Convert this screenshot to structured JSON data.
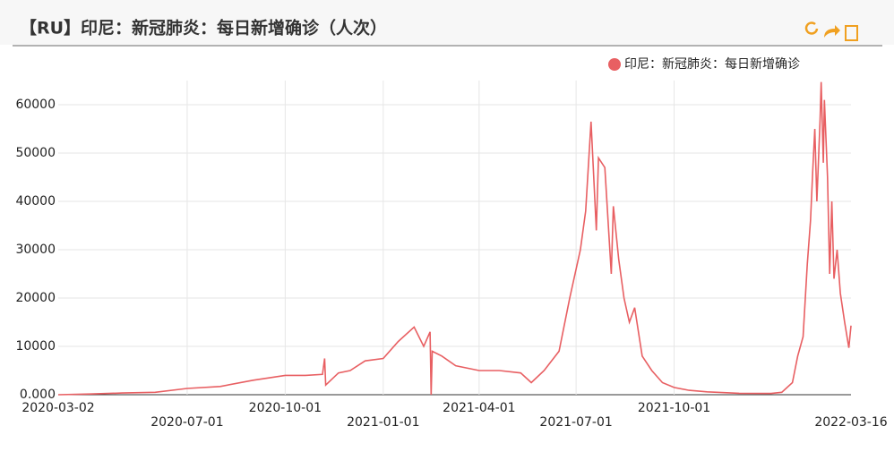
{
  "chart_data": {
    "type": "line",
    "title": "【RU】印尼：新冠肺炎：每日新增确诊（人次）",
    "xlim": [
      "2020-03-02",
      "2022-03-16"
    ],
    "xticks": [
      "2020-03-02",
      "2020-07-01",
      "2020-10-01",
      "2021-01-01",
      "2021-04-01",
      "2021-07-01",
      "2021-10-01",
      "2022-03-16"
    ],
    "ylim": [
      0,
      65000
    ],
    "yticks": [
      {
        "value": 0,
        "label": "0.000"
      },
      10000,
      20000,
      30000,
      40000,
      50000,
      60000
    ],
    "grid": true,
    "legend": "top-right",
    "x": [
      "2020-03-02",
      "2020-04-01",
      "2020-05-01",
      "2020-06-01",
      "2020-07-01",
      "2020-08-01",
      "2020-09-01",
      "2020-10-01",
      "2020-10-20",
      "2020-11-05",
      "2020-11-07",
      "2020-11-08",
      "2020-11-20",
      "2020-12-01",
      "2020-12-15",
      "2021-01-01",
      "2021-01-15",
      "2021-01-30",
      "2021-02-08",
      "2021-02-14",
      "2021-02-15",
      "2021-02-16",
      "2021-02-25",
      "2021-03-10",
      "2021-04-01",
      "2021-04-20",
      "2021-05-10",
      "2021-05-20",
      "2021-06-01",
      "2021-06-15",
      "2021-06-25",
      "2021-07-05",
      "2021-07-10",
      "2021-07-15",
      "2021-07-20",
      "2021-07-22",
      "2021-07-28",
      "2021-08-03",
      "2021-08-05",
      "2021-08-10",
      "2021-08-15",
      "2021-08-20",
      "2021-08-25",
      "2021-09-01",
      "2021-09-10",
      "2021-09-20",
      "2021-10-01",
      "2021-10-15",
      "2021-11-01",
      "2021-12-01",
      "2021-12-31",
      "2022-01-10",
      "2022-01-20",
      "2022-01-25",
      "2022-01-30",
      "2022-02-03",
      "2022-02-06",
      "2022-02-08",
      "2022-02-10",
      "2022-02-12",
      "2022-02-15",
      "2022-02-16",
      "2022-02-18",
      "2022-02-19",
      "2022-02-22",
      "2022-02-24",
      "2022-02-26",
      "2022-02-28",
      "2022-03-03",
      "2022-03-06",
      "2022-03-10",
      "2022-03-14",
      "2022-03-16"
    ],
    "series": [
      {
        "name": "印尼：新冠肺炎：每日新增确诊",
        "color": "#e85f62",
        "values": [
          0,
          150,
          350,
          500,
          1300,
          1700,
          3000,
          4000,
          4000,
          4200,
          7500,
          2000,
          4500,
          5000,
          7000,
          7500,
          11000,
          14000,
          10000,
          13000,
          0,
          9000,
          8000,
          6000,
          5000,
          5000,
          4500,
          2500,
          5000,
          9000,
          20000,
          30000,
          38000,
          56500,
          34000,
          49000,
          47000,
          25000,
          39000,
          28000,
          20000,
          15000,
          18000,
          8000,
          5000,
          2500,
          1500,
          900,
          600,
          300,
          250,
          500,
          2500,
          8000,
          12000,
          27000,
          36000,
          46000,
          55000,
          40000,
          57000,
          64700,
          48000,
          61000,
          45000,
          25000,
          40000,
          24000,
          30000,
          21000,
          15000,
          9700,
          14300
        ]
      }
    ]
  }
}
